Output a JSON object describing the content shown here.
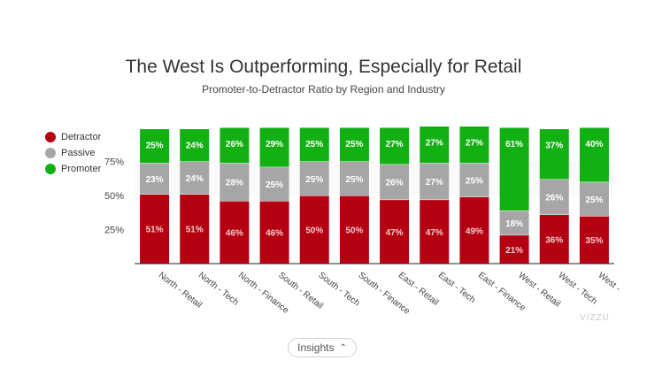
{
  "header": {
    "title": "The West Is Outperforming, Especially for Retail",
    "subtitle": "Promoter-to-Detractor Ratio by Region and Industry"
  },
  "insights": {
    "label": "Insights",
    "chevron": "chevron-up-icon"
  },
  "watermark": "VIZZU",
  "chart_data": {
    "type": "bar",
    "stacked": true,
    "title": "The West Is Outperforming, Especially for Retail",
    "subtitle": "Promoter-to-Detractor Ratio by Region and Industry",
    "xlabel": "",
    "ylabel": "",
    "ylim": [
      0,
      100
    ],
    "yticks": [
      "25%",
      "50%",
      "75%"
    ],
    "legend_position": "left",
    "categories": [
      "North - Retail",
      "North - Tech",
      "North - Finance",
      "South - Retail",
      "South - Tech",
      "South - Finance",
      "East - Retail",
      "East - Tech",
      "East - Finance",
      "West - Retail",
      "West - Tech",
      "West - Finance"
    ],
    "series": [
      {
        "name": "Detractor",
        "color": "#b50012",
        "values": [
          51,
          51,
          46,
          46,
          50,
          50,
          47,
          47,
          49,
          21,
          36,
          35
        ]
      },
      {
        "name": "Passive",
        "color": "#a6a6a6",
        "values": [
          23,
          24,
          28,
          25,
          25,
          25,
          26,
          27,
          25,
          18,
          26,
          25
        ]
      },
      {
        "name": "Promoter",
        "color": "#12b012",
        "values": [
          25,
          24,
          26,
          29,
          25,
          25,
          27,
          27,
          27,
          61,
          37,
          40
        ]
      }
    ]
  }
}
